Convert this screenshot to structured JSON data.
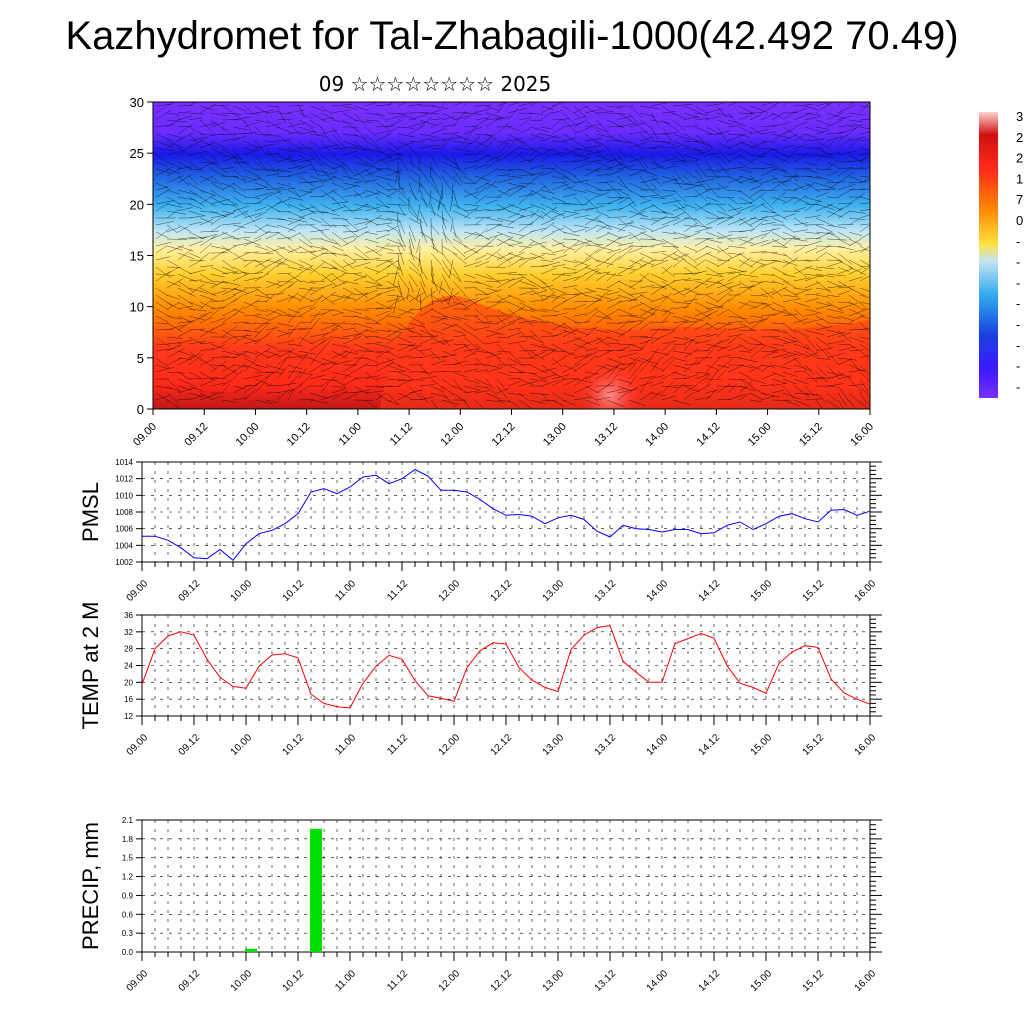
{
  "title": "Kazhydromet for Tal-Zhabagili-1000(42.492 70.49)",
  "subtitle": "09 ☆☆☆☆☆☆☆☆ 2025",
  "time_labels": [
    "09.00",
    "09.12",
    "10.00",
    "10.12",
    "11.00",
    "11.12",
    "12.00",
    "12.12",
    "13.00",
    "13.12",
    "14.00",
    "14.12",
    "15.00",
    "15.12",
    "16.00"
  ],
  "chart_data": [
    {
      "type": "heatmap",
      "name": "cross-section",
      "ylim": [
        0,
        30
      ],
      "yticks": [
        0,
        5,
        10,
        15,
        20,
        25,
        30
      ],
      "xlim": [
        0,
        168
      ],
      "colorbar_labels": [
        "3",
        "2",
        "2",
        "1",
        "7",
        "0",
        "-",
        "-",
        "-",
        "-",
        "-",
        "-",
        "-",
        "-"
      ],
      "colors": [
        "#ffd0d0",
        "#ff2a1a",
        "#ff8800",
        "#ffe040",
        "#c8e4f0",
        "#30aaf0",
        "#1a40e0",
        "#7a30ff"
      ]
    },
    {
      "type": "line",
      "ylabel": "PMSL",
      "ylim": [
        1002,
        1014
      ],
      "yticks": [
        1002,
        1004,
        1006,
        1008,
        1010,
        1012,
        1014
      ],
      "color": "#0000ff",
      "x": [
        0,
        3,
        6,
        9,
        12,
        15,
        18,
        21,
        24,
        27,
        30,
        33,
        36,
        39,
        42,
        45,
        48,
        51,
        54,
        57,
        60,
        63,
        66,
        69,
        72,
        75,
        78,
        81,
        84,
        87,
        90,
        93,
        96,
        99,
        102,
        105,
        108,
        111,
        114,
        117,
        120,
        123,
        126,
        129,
        132,
        135,
        138,
        141,
        144,
        147,
        150,
        153,
        156,
        159,
        162,
        165,
        168
      ],
      "values": [
        1005.1,
        1005.1,
        1004.6,
        1003.7,
        1002.5,
        1002.4,
        1003.5,
        1002.2,
        1004.2,
        1005.4,
        1005.8,
        1006.6,
        1007.8,
        1010.4,
        1010.8,
        1010.2,
        1011,
        1012.2,
        1012.4,
        1011.4,
        1012,
        1013.1,
        1012.3,
        1010.6,
        1010.6,
        1010.4,
        1009.5,
        1008.4,
        1007.6,
        1007.7,
        1007.5,
        1006.6,
        1007.3,
        1007.6,
        1007.1,
        1005.7,
        1005,
        1006.4,
        1006,
        1005.9,
        1005.6,
        1005.9,
        1005.9,
        1005.4,
        1005.5,
        1006.4,
        1006.8,
        1005.9,
        1006.6,
        1007.5,
        1007.8,
        1007.2,
        1006.8,
        1008.2,
        1008.3,
        1007.6,
        1008.1
      ]
    },
    {
      "type": "line",
      "ylabel": "TEMP at 2 M",
      "ylim": [
        12,
        36
      ],
      "yticks": [
        12,
        16,
        20,
        24,
        28,
        32,
        36
      ],
      "color": "#ff0000",
      "x": [
        0,
        3,
        6,
        9,
        12,
        15,
        18,
        21,
        24,
        27,
        30,
        33,
        36,
        39,
        42,
        45,
        48,
        51,
        54,
        57,
        60,
        63,
        66,
        69,
        72,
        75,
        78,
        81,
        84,
        87,
        90,
        93,
        96,
        99,
        102,
        105,
        108,
        111,
        114,
        117,
        120,
        123,
        126,
        129,
        132,
        135,
        138,
        141,
        144,
        147,
        150,
        153,
        156,
        159,
        162,
        165,
        168
      ],
      "values": [
        19.5,
        28,
        31,
        32,
        31.2,
        25.5,
        21.2,
        19,
        18.6,
        23.8,
        26.5,
        26.8,
        25.8,
        17.2,
        15,
        14.2,
        13.9,
        19.8,
        23.8,
        26.4,
        25.5,
        20.4,
        16.8,
        16.2,
        15.5,
        23.5,
        27.5,
        29.4,
        29.1,
        23.5,
        20.5,
        18.8,
        17.8,
        27.8,
        31.2,
        33,
        33.5,
        25,
        22.4,
        20,
        20,
        29.2,
        30.4,
        31.6,
        30.5,
        24,
        19.8,
        18.8,
        17.4,
        24.5,
        27.2,
        28.7,
        28.3,
        20.8,
        17.5,
        16,
        14.8
      ]
    },
    {
      "type": "bar",
      "ylabel": "PRECIP, mm",
      "ylim": [
        0,
        2.1
      ],
      "yticks": [
        "0.0",
        "0.3",
        "0.6",
        "0.9",
        "1.2",
        "1.5",
        "1.8",
        "2.1"
      ],
      "color": "#00e000",
      "x": [
        24,
        39
      ],
      "values": [
        0.05,
        1.96
      ]
    }
  ]
}
